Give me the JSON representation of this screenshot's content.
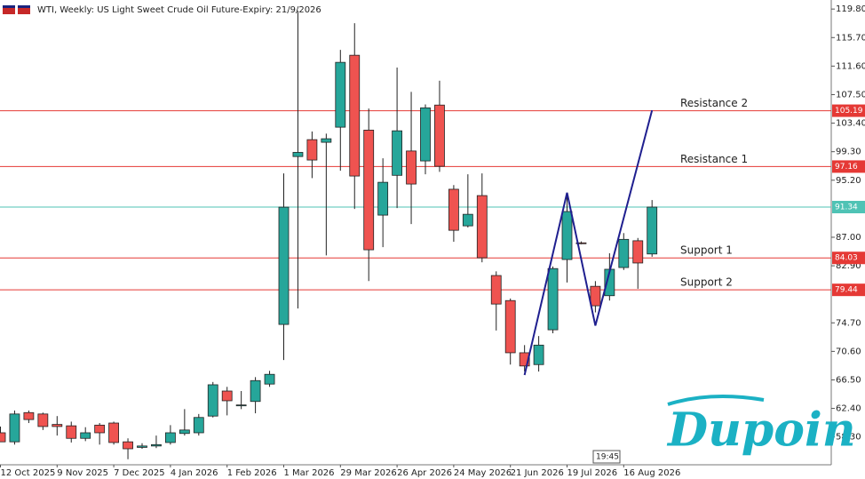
{
  "chart_data": {
    "type": "candlestick",
    "title": "WTI, Weekly:  US Light Sweet Crude Oil Future-Expiry: 21/9/2026",
    "categories": [
      "12 Oct 2025",
      null,
      null,
      null,
      "9 Nov 2025",
      null,
      null,
      null,
      "7 Dec 2025",
      null,
      null,
      null,
      "4 Jan 2026",
      null,
      null,
      null,
      "1 Feb 2026",
      null,
      null,
      null,
      "1 Mar 2026",
      null,
      null,
      null,
      "29 Mar 2026",
      null,
      null,
      null,
      "26 Apr 2026",
      null,
      null,
      null,
      "24 May 2026",
      null,
      null,
      null,
      "21 Jun 2026",
      null,
      null,
      null,
      "19 Jul 2026",
      null,
      null,
      null,
      "16 Aug 2026",
      null,
      null
    ],
    "open": [
      58.9,
      57.6,
      61.8,
      61.6,
      60.1,
      59.9,
      58.1,
      60.0,
      60.3,
      57.6,
      56.8,
      57.0,
      57.5,
      58.8,
      58.9,
      61.3,
      64.9,
      62.8,
      63.4,
      65.9,
      74.47,
      98.6,
      101.03,
      100.65,
      102.82,
      113.16,
      102.4,
      90.18,
      95.9,
      99.4,
      97.97,
      106.0,
      93.9,
      88.64,
      92.99,
      81.5,
      77.9,
      70.4,
      68.7,
      73.7,
      83.8,
      86.2,
      79.95,
      78.6,
      82.65,
      86.5,
      84.6
    ],
    "high": [
      59.8,
      62.1,
      62.1,
      61.8,
      61.3,
      60.5,
      59.7,
      60.3,
      60.5,
      58.1,
      57.4,
      58.5,
      60.0,
      62.3,
      61.6,
      66.2,
      65.5,
      64.9,
      66.9,
      67.8,
      96.18,
      119.55,
      102.2,
      101.9,
      113.93,
      117.76,
      105.5,
      98.35,
      111.4,
      107.9,
      106.1,
      109.5,
      94.5,
      96.05,
      96.18,
      82.1,
      78.2,
      71.5,
      72.8,
      82.8,
      93.2,
      86.4,
      80.7,
      84.7,
      87.6,
      86.9,
      92.35
    ],
    "low": [
      57.6,
      57.2,
      60.3,
      59.3,
      58.5,
      57.5,
      57.7,
      57.2,
      57.2,
      55.1,
      56.6,
      56.7,
      57.2,
      58.5,
      58.5,
      61.1,
      61.4,
      62.3,
      61.7,
      65.5,
      69.36,
      76.77,
      95.5,
      84.4,
      96.56,
      91.07,
      80.7,
      85.58,
      91.2,
      88.9,
      96.05,
      96.4,
      86.35,
      88.4,
      83.4,
      73.6,
      68.7,
      67.7,
      67.7,
      73.2,
      80.5,
      86.0,
      76.2,
      77.9,
      82.3,
      79.6,
      84.2
    ],
    "close": [
      57.6,
      61.6,
      60.8,
      59.8,
      59.8,
      58.1,
      58.9,
      58.9,
      57.5,
      56.6,
      57.0,
      57.2,
      58.9,
      59.3,
      61.1,
      65.8,
      63.5,
      62.9,
      66.4,
      67.3,
      91.33,
      99.2,
      98.1,
      101.16,
      112.14,
      95.8,
      85.2,
      94.9,
      102.3,
      94.65,
      105.6,
      97.2,
      88.0,
      90.3,
      84.05,
      77.4,
      70.4,
      68.5,
      71.5,
      82.5,
      90.7,
      86.1,
      77.15,
      82.4,
      86.7,
      83.3,
      91.34
    ],
    "up_color": "#26a69a",
    "down_color": "#ef5350",
    "ylim": [
      54.3,
      121.1
    ],
    "yticks": [
      {
        "value": 119.8,
        "label": "119.80"
      },
      {
        "value": 115.7,
        "label": "115.70"
      },
      {
        "value": 111.6,
        "label": "111.60"
      },
      {
        "value": 107.5,
        "label": "107.50"
      },
      {
        "value": 103.4,
        "label": "103.40"
      },
      {
        "value": 99.3,
        "label": "99.30"
      },
      {
        "value": 95.2,
        "label": "95.20"
      },
      {
        "value": 87,
        "label": "87.00"
      },
      {
        "value": 82.9,
        "label": "82.90"
      },
      {
        "value": 74.7,
        "label": "74.70"
      },
      {
        "value": 70.6,
        "label": "70.60"
      },
      {
        "value": 66.5,
        "label": "66.50"
      },
      {
        "value": 62.4,
        "label": "62.40"
      },
      {
        "value": 58.3,
        "label": "58.30"
      }
    ],
    "levels": [
      {
        "name": "Resistance 2",
        "value": 105.19,
        "color": "#e53935"
      },
      {
        "name": "Resistance 1",
        "value": 97.16,
        "color": "#e53935"
      },
      {
        "name": "Support 1",
        "value": 84.03,
        "color": "#e53935"
      },
      {
        "name": "Support 2",
        "value": 79.44,
        "color": "#e53935"
      }
    ],
    "price_line": {
      "value": 91.34,
      "color": "#4fc3b5"
    },
    "drawn_line": {
      "color": "#1f1f8f",
      "x": [
        37,
        40,
        42,
        46
      ],
      "values": [
        67.2,
        93.4,
        74.3,
        105.25
      ]
    },
    "time_box": "19:45",
    "watermark": "Dupoin"
  }
}
